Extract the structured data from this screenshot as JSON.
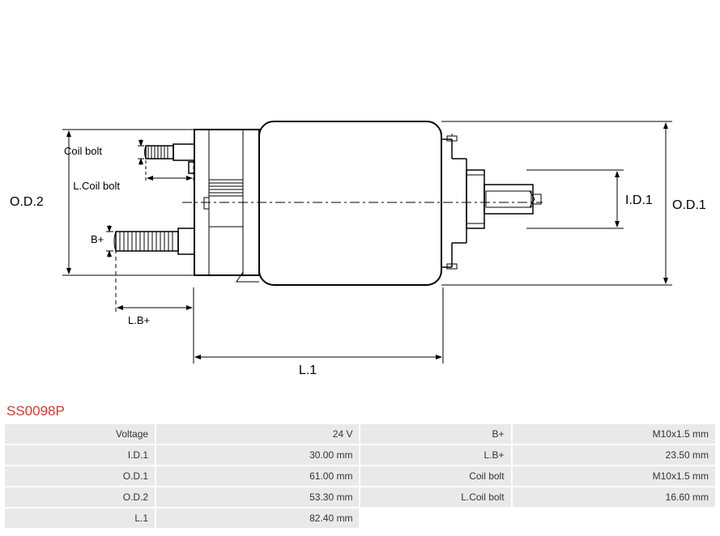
{
  "part_number": "SS0098P",
  "part_number_color": "#d23a2a",
  "diagram": {
    "labels": {
      "od2": "O.D.2",
      "od1": "O.D.1",
      "id1": "I.D.1",
      "l1": "L.1",
      "lb_plus": "L.B+",
      "b_plus": "B+",
      "coil_bolt": "Coil bolt",
      "l_coil_bolt": "L.Coil bolt"
    },
    "stroke_color": "#000000",
    "dash_color": "#000000",
    "background": "#ffffff"
  },
  "specs": {
    "columns": [
      "label",
      "value",
      "label",
      "value"
    ],
    "rows": [
      {
        "l1": "Voltage",
        "v1": "24 V",
        "l2": "B+",
        "v2": "M10x1.5 mm"
      },
      {
        "l1": "I.D.1",
        "v1": "30.00 mm",
        "l2": "L.B+",
        "v2": "23.50 mm"
      },
      {
        "l1": "O.D.1",
        "v1": "61.00 mm",
        "l2": "Coil bolt",
        "v2": "M10x1.5 mm"
      },
      {
        "l1": "O.D.2",
        "v1": "53.30 mm",
        "l2": "L.Coil bolt",
        "v2": "16.60 mm"
      },
      {
        "l1": "L.1",
        "v1": "82.40 mm",
        "l2": "",
        "v2": ""
      }
    ],
    "cell_bg": "#e9e9e9",
    "font_size": 12,
    "text_color": "#333333"
  }
}
